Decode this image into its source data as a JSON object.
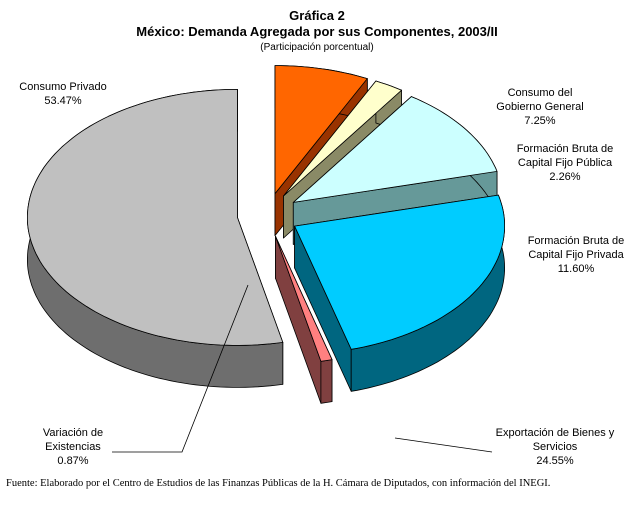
{
  "chart_data": {
    "type": "pie3d",
    "title": "Gráfica 2",
    "subtitle": "México: Demanda Agregada por sus Componentes, 2003/II",
    "note": "(Participación porcentual)",
    "categories": [
      "Consumo del Gobierno General",
      "Formación Bruta de Capital Fijo Pública",
      "Formación Bruta de Capital Fijo Privada",
      "Exportación de Bienes y Servicios",
      "Variación de Existencias",
      "Consumo Privado"
    ],
    "values": [
      7.25,
      2.26,
      11.6,
      24.55,
      0.87,
      53.47
    ],
    "value_labels": [
      "7.25%",
      "2.26%",
      "11.60%",
      "24.55%",
      "0.87%",
      "53.47%"
    ],
    "colors": [
      "#ff6600",
      "#ffffcc",
      "#ccffff",
      "#00ccff",
      "#ff8080",
      "#c0c0c0"
    ],
    "side_colors": [
      "#993300",
      "#8a8a66",
      "#669999",
      "#006680",
      "#804040",
      "#6e6e6e"
    ],
    "source": "Fuente: Elaborado por el Centro de Estudios de las Finanzas Públicas de la H. Cámara de Diputados, con información del INEGI."
  }
}
